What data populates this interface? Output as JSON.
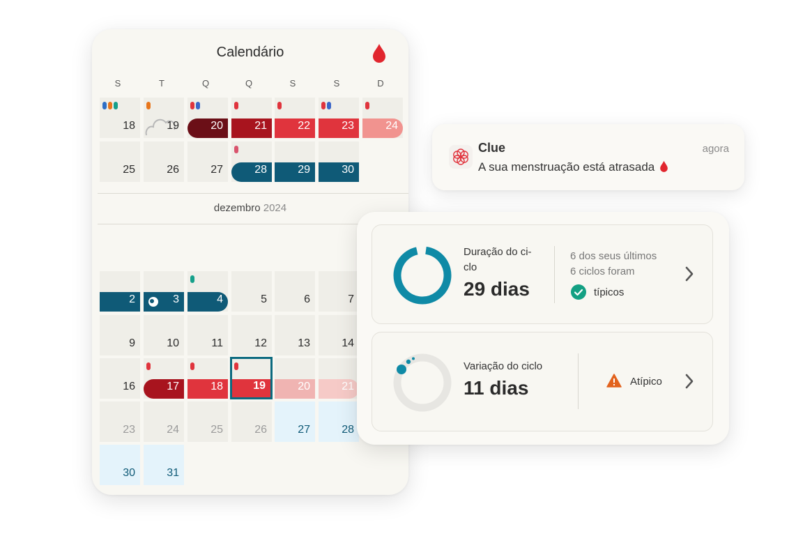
{
  "calendar": {
    "title": "Calendário",
    "weekdays": [
      "S",
      "T",
      "Q",
      "Q",
      "S",
      "S",
      "D"
    ],
    "nov": {
      "week1": [
        "18",
        "19",
        "20",
        "21",
        "22",
        "23",
        "24"
      ],
      "week2": [
        "25",
        "26",
        "27",
        "28",
        "29",
        "30"
      ]
    },
    "month_label": {
      "name": "dezembro",
      "year": "2024"
    },
    "dec": {
      "week1": [
        "2",
        "3",
        "4",
        "5",
        "6",
        "7"
      ],
      "week2": [
        "9",
        "10",
        "11",
        "12",
        "13",
        "14"
      ],
      "week3": [
        "16",
        "17",
        "18",
        "19",
        "20",
        "21"
      ],
      "week4": [
        "23",
        "24",
        "25",
        "26",
        "27",
        "28"
      ],
      "week5": [
        "30",
        "31"
      ]
    },
    "colors": {
      "period_dark": "#6b0f17",
      "period": "#a8141e",
      "period_mid": "#e0343d",
      "period_light": "#f1938f",
      "fertile": "#0f5a77",
      "predicted_pink": "#f0b4b2",
      "accent_teal": "#0c6a7f"
    }
  },
  "notification": {
    "app": "Clue",
    "time": "agora",
    "message": "A sua menstruação está atrasada"
  },
  "stats": {
    "cycle_length": {
      "label": "Duração do ci-\nclo",
      "label_line1": "Duração do ci-",
      "label_line2": "clo",
      "value": "29 dias",
      "note_line1": "6 dos seus últimos",
      "note_line2": "6 ciclos foram",
      "status": "típicos"
    },
    "cycle_variation": {
      "label": "Variação do ciclo",
      "value": "11 dias",
      "status": "Atípico"
    }
  }
}
